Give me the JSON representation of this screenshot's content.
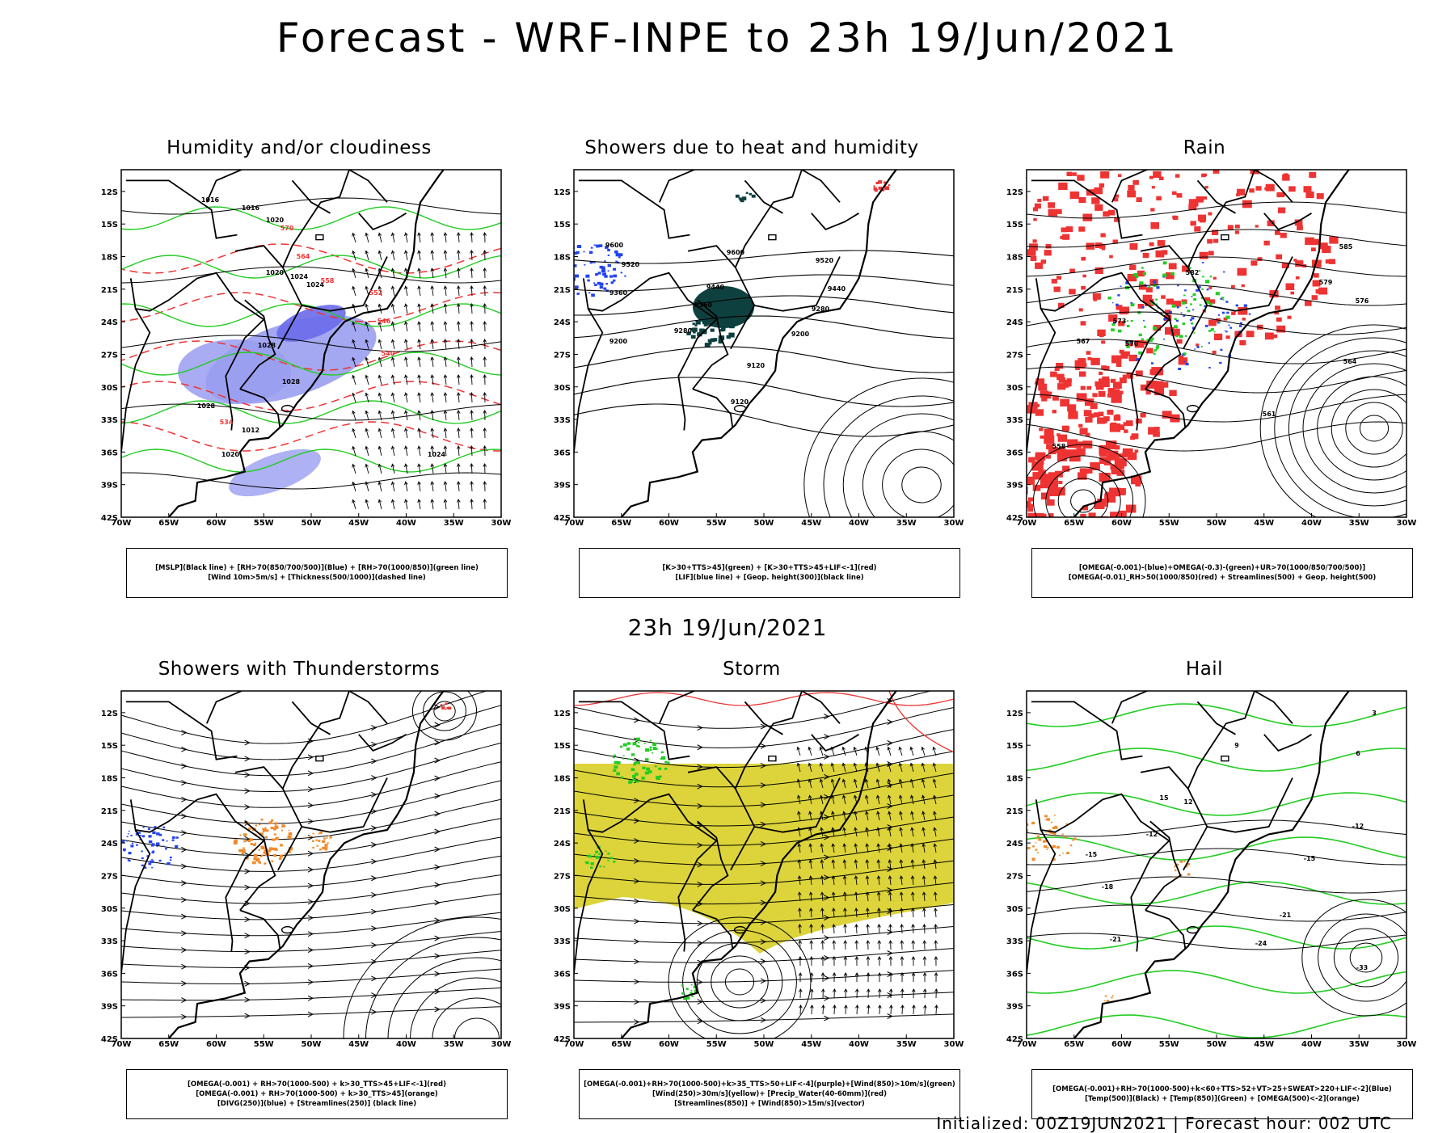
{
  "header": {
    "title": "Forecast - WRF-INPE to 23h 19/Jun/2021",
    "mid_title": "23h 19/Jun/2021"
  },
  "footer": {
    "text": "Initialized: 00Z19JUN2021 | Forecast hour: 002 UTC"
  },
  "axes": {
    "lat_ticks": [
      "12S",
      "15S",
      "18S",
      "21S",
      "24S",
      "27S",
      "30S",
      "33S",
      "36S",
      "39S",
      "42S"
    ],
    "lon_ticks": [
      "70W",
      "65W",
      "60W",
      "55W",
      "50W",
      "45W",
      "40W",
      "35W",
      "30W"
    ]
  },
  "colors": {
    "black": "#000000",
    "blue_fill": "#9a9ef0",
    "blue_dark": "#6a6aea",
    "green": "#22cc22",
    "red": "#ee3333",
    "teal": "#0e4040",
    "blue_cells": "#2244ee",
    "orange": "#f08b2c",
    "yellow": "#dcd43a"
  },
  "panels": [
    {
      "id": "humidity",
      "title": "Humidity and/or cloudiness",
      "legend": [
        "[MSLP](Black line) + [RH>70(850/700/500)](Blue) + [RH>70(1000/850)](green line)",
        "[Wind 10m>5m/s] + [Thickness(500/1000)](dashed line)"
      ],
      "contour_labels": [
        "1016",
        "1016",
        "1020",
        "1020",
        "1024",
        "1024",
        "1028",
        "1028",
        "1028",
        "1012",
        "1020",
        "1024"
      ],
      "dashed_labels": [
        "570",
        "564",
        "558",
        "552",
        "546",
        "540",
        "534"
      ],
      "style": "humidity"
    },
    {
      "id": "showers-heat",
      "title": "Showers due to heat and humidity",
      "legend": [
        "[K>30+TTS>45](green) + [K>30+TTS>45+LIF<-1](red)",
        "[LIF](blue line) + [Geop. height(300)](black line)"
      ],
      "contour_labels": [
        "9600",
        "9600",
        "9520",
        "9520",
        "9440",
        "9440",
        "9360",
        "9360",
        "9280",
        "9280",
        "9200",
        "9200",
        "9120",
        "9120"
      ],
      "dashed_labels": [],
      "style": "geop"
    },
    {
      "id": "rain",
      "title": "Rain",
      "legend": [
        "[OMEGA(-0.001)-(blue)+OMEGA(-0.3)-(green)+UR>70(1000/850/700/500)]",
        "[OMEGA(-0.01)_RH>50(1000/850)(red) + Streamlines(500) + Geop. height(500)"
      ],
      "contour_labels": [
        "585",
        "582",
        "579",
        "576",
        "573",
        "570",
        "567",
        "564",
        "561",
        "558",
        "552"
      ],
      "dashed_labels": [],
      "style": "rain"
    },
    {
      "id": "thunderstorms",
      "title": "Showers with Thunderstorms",
      "legend": [
        "[OMEGA(-0.001) + RH>70(1000-500) + k>30_TTS>45+LIF<-1](red)",
        "[OMEGA(-0.001) + RH>70(1000-500) + k>30_TTS>45](orange)",
        "[DIVG(250)](blue) + [Streamlines(250)] (black line)"
      ],
      "contour_labels": [],
      "dashed_labels": [],
      "style": "thunder"
    },
    {
      "id": "storm",
      "title": "Storm",
      "legend": [
        "[OMEGA(-0.001)+RH>70(1000-500)+k>35_TTS>50+LIF<-4](purple)+[Wind(850)>10m/s](green)",
        "[Wind(250)>30m/s](yellow)+ [Precip_Water(40-60mm)](red)",
        "[Streamlines(850)] + [Wind(850)>15m/s](vector)"
      ],
      "contour_labels": [],
      "dashed_labels": [],
      "style": "storm"
    },
    {
      "id": "hail",
      "title": "Hail",
      "legend": [
        "[OMEGA(-0.001)+RH>70(1000-500)+k<60+TTS>52+VT>25+SWEAT>220+LIF<-2](Blue)",
        "[Temp(500)](Black) + [Temp(850)](Green) + [OMEGA(500)<-2](orange)"
      ],
      "contour_labels": [
        "-12",
        "-12",
        "-15",
        "-15",
        "-18",
        "-21",
        "-21",
        "-24",
        "-33",
        "15",
        "12",
        "9",
        "6",
        "3"
      ],
      "dashed_labels": [],
      "style": "hail"
    }
  ]
}
